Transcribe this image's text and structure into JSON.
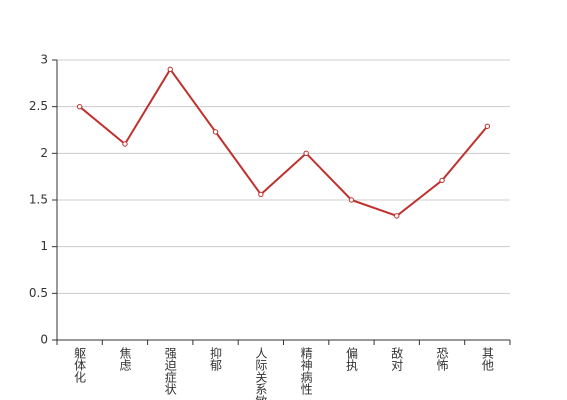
{
  "chart_data": {
    "type": "line",
    "categories": [
      "躯体化",
      "焦虑",
      "强迫症状",
      "抑郁",
      "人际关系敏感",
      "精神病性",
      "偏执",
      "敌对",
      "恐怖",
      "其他"
    ],
    "series": [
      {
        "color": "#c0312e",
        "values": [
          2.5,
          2.1,
          2.9,
          2.23,
          1.56,
          2.0,
          1.5,
          1.33,
          1.71,
          2.29
        ]
      }
    ],
    "ylim": [
      0,
      3
    ],
    "yticks": [
      0,
      0.5,
      1,
      1.5,
      2,
      2.5,
      3
    ],
    "grid": true
  }
}
